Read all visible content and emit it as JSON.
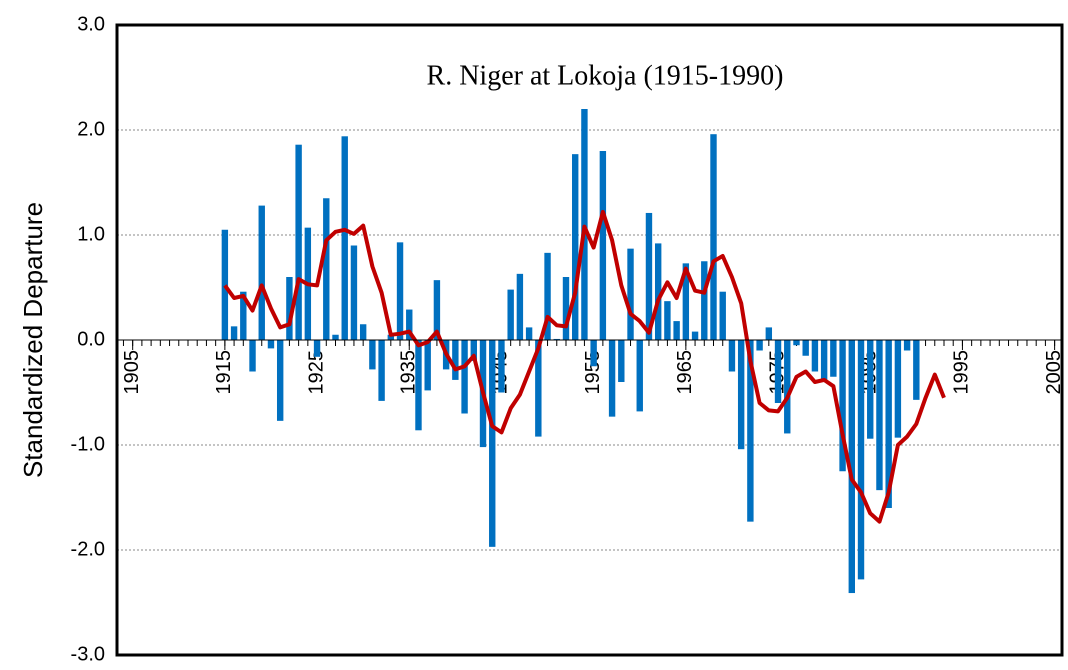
{
  "chart_data": {
    "type": "bar",
    "title": "R. Niger at Lokoja (1915-1990)",
    "y_label": "Standardized Departure",
    "x": [
      1915,
      1916,
      1917,
      1918,
      1919,
      1920,
      1921,
      1922,
      1923,
      1924,
      1925,
      1926,
      1927,
      1928,
      1929,
      1930,
      1931,
      1932,
      1933,
      1934,
      1935,
      1936,
      1937,
      1938,
      1939,
      1940,
      1941,
      1942,
      1943,
      1944,
      1945,
      1946,
      1947,
      1948,
      1949,
      1950,
      1951,
      1952,
      1953,
      1954,
      1955,
      1956,
      1957,
      1958,
      1959,
      1960,
      1961,
      1962,
      1963,
      1964,
      1965,
      1966,
      1967,
      1968,
      1969,
      1970,
      1971,
      1972,
      1973,
      1974,
      1975,
      1976,
      1977,
      1978,
      1979,
      1980,
      1981,
      1982,
      1983,
      1984,
      1985,
      1986,
      1987,
      1988,
      1989,
      1990,
      1991,
      1992,
      1993
    ],
    "series": [
      {
        "type": "bar",
        "color": "#0070c0",
        "values": [
          1.05,
          0.13,
          0.46,
          -0.3,
          1.28,
          -0.08,
          -0.77,
          0.6,
          1.86,
          1.07,
          -0.16,
          1.35,
          0.05,
          1.94,
          0.9,
          0.15,
          -0.28,
          -0.58,
          0.05,
          0.93,
          0.29,
          -0.86,
          -0.48,
          0.57,
          -0.28,
          -0.38,
          -0.7,
          -0.2,
          -1.02,
          -1.97,
          -0.5,
          0.48,
          0.63,
          0.12,
          -0.92,
          0.83,
          0.01,
          0.6,
          1.77,
          2.2,
          -0.25,
          1.8,
          -0.73,
          -0.4,
          0.87,
          -0.68,
          1.21,
          0.92,
          0.37,
          0.18,
          0.73,
          0.08,
          0.75,
          1.96,
          0.46,
          -0.3,
          -1.04,
          -1.73,
          -0.1,
          0.12,
          -0.6,
          -0.89,
          -0.05,
          -0.15,
          -0.3,
          -0.4,
          -0.35,
          -1.25,
          -2.41,
          -2.28,
          -0.94,
          -1.43,
          -1.6,
          -0.93,
          -0.1,
          -0.57,
          null,
          null,
          null
        ]
      },
      {
        "type": "line",
        "color": "#c00000",
        "values": [
          0.52,
          0.4,
          0.42,
          0.28,
          0.52,
          0.3,
          0.12,
          0.15,
          0.58,
          0.53,
          0.52,
          0.95,
          1.03,
          1.05,
          1.01,
          1.09,
          0.7,
          0.45,
          0.05,
          0.06,
          0.08,
          -0.05,
          -0.02,
          0.08,
          -0.13,
          -0.28,
          -0.25,
          -0.15,
          -0.5,
          -0.82,
          -0.88,
          -0.65,
          -0.52,
          -0.3,
          -0.08,
          0.22,
          0.14,
          0.13,
          0.45,
          1.08,
          0.88,
          1.22,
          0.95,
          0.52,
          0.25,
          0.18,
          0.07,
          0.38,
          0.55,
          0.4,
          0.68,
          0.47,
          0.45,
          0.75,
          0.8,
          0.6,
          0.35,
          -0.2,
          -0.6,
          -0.67,
          -0.68,
          -0.55,
          -0.35,
          -0.3,
          -0.4,
          -0.38,
          -0.44,
          -0.9,
          -1.33,
          -1.45,
          -1.65,
          -1.73,
          -1.45,
          -1.0,
          -0.92,
          -0.8,
          -0.55,
          -0.33,
          -0.55
        ]
      }
    ],
    "xlim": [
      1903.3,
      2005.8
    ],
    "xticks": [
      1905,
      1915,
      1925,
      1935,
      1945,
      1955,
      1965,
      1975,
      1985,
      1995,
      2005
    ],
    "ylim": [
      -3,
      3
    ],
    "yticks": [
      {
        "value": -3,
        "label": "-3.0"
      },
      {
        "value": -2,
        "label": "-2.0"
      },
      {
        "value": -1,
        "label": "-1.0"
      },
      {
        "value": 0,
        "label": "0.0"
      },
      {
        "value": 1,
        "label": "1.0"
      },
      {
        "value": 2,
        "label": "2.0"
      },
      {
        "value": 3,
        "label": "3.0"
      }
    ],
    "grid": true
  }
}
